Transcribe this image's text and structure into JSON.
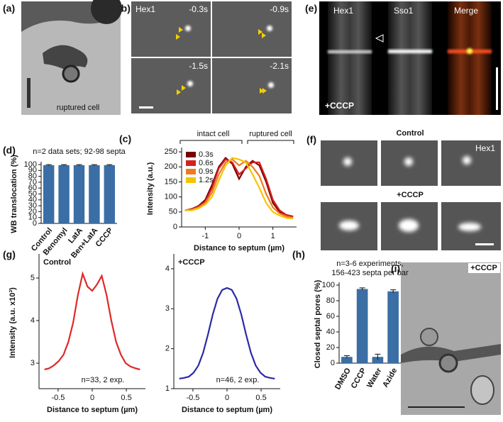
{
  "panel_labels": [
    "(a)",
    "(b)",
    "(c)",
    "(d)",
    "(e)",
    "(f)",
    "(g)",
    "(h)",
    "(i)"
  ],
  "images": {
    "a": {
      "caption": "ruptured cell"
    },
    "b": {
      "channel": "Hex1",
      "times": [
        "-0.3s",
        "-0.9s",
        "-1.5s",
        "-2.1s"
      ]
    },
    "e": {
      "channels": [
        "Hex1",
        "Sso1",
        "Merge"
      ],
      "treatment": "+CCCP"
    },
    "f": {
      "rows": [
        "Control",
        "+CCCP"
      ],
      "channel": "Hex1"
    },
    "i": {
      "treatment": "+CCCP"
    }
  },
  "chart_data": [
    {
      "type": "bar",
      "title": "n=2 data sets; 92-98 septa",
      "y_label": "WB translocation (%)",
      "categories": [
        "Control",
        "Benomyl",
        "LatA",
        "Ben+LatA",
        "CCCP"
      ],
      "values": [
        99,
        99,
        99,
        99,
        99
      ],
      "errors": [
        0.8,
        0.8,
        0.8,
        0.8,
        0.8
      ],
      "color": "#3a6ea5",
      "ylim": [
        0,
        100
      ],
      "yticks": [
        0,
        10,
        20,
        30,
        40,
        50,
        60,
        70,
        80,
        90,
        100
      ]
    },
    {
      "type": "line",
      "y_label": "Intensity (a.u.)",
      "x_label": "Distance to septum (µm)",
      "annotations": [
        "intact cell",
        "ruptured cell"
      ],
      "x": [
        -1.6,
        -1.4,
        -1.2,
        -1.0,
        -0.8,
        -0.6,
        -0.4,
        -0.2,
        0,
        0.2,
        0.4,
        0.6,
        0.8,
        1.0,
        1.2,
        1.4,
        1.6
      ],
      "series": [
        {
          "name": "0.3s",
          "color": "#7a0000",
          "values": [
            55,
            60,
            70,
            90,
            140,
            200,
            230,
            210,
            160,
            200,
            220,
            205,
            150,
            80,
            50,
            40,
            35
          ]
        },
        {
          "name": "0.6s",
          "color": "#d42020",
          "values": [
            55,
            58,
            68,
            85,
            130,
            195,
            225,
            215,
            175,
            195,
            215,
            215,
            160,
            90,
            55,
            40,
            35
          ]
        },
        {
          "name": "0.9s",
          "color": "#f07a20",
          "values": [
            55,
            58,
            65,
            80,
            115,
            175,
            215,
            225,
            205,
            220,
            200,
            170,
            110,
            65,
            45,
            35,
            30
          ]
        },
        {
          "name": "1.2s",
          "color": "#f5c400",
          "values": [
            55,
            55,
            62,
            75,
            100,
            155,
            205,
            230,
            225,
            215,
            175,
            130,
            80,
            50,
            38,
            30,
            28
          ]
        }
      ],
      "xlim": [
        -1.7,
        1.7
      ],
      "xticks": [
        -1,
        0,
        1
      ],
      "ylim": [
        0,
        255
      ],
      "yticks": [
        0,
        50,
        100,
        150,
        200,
        250
      ],
      "legend": "top-left"
    },
    {
      "type": "line",
      "title": "Control",
      "note": "n=33, 2 exp.",
      "y_label": "Intensity (a.u. x10³)",
      "x_label": "Distance to septum (µm)",
      "x": [
        -0.7,
        -0.63,
        -0.56,
        -0.49,
        -0.42,
        -0.35,
        -0.28,
        -0.21,
        -0.14,
        -0.07,
        0,
        0.07,
        0.14,
        0.21,
        0.28,
        0.35,
        0.42,
        0.49,
        0.56,
        0.63,
        0.7
      ],
      "series": [
        {
          "color": "#e02828",
          "values": [
            2.85,
            2.88,
            2.95,
            3.05,
            3.2,
            3.5,
            3.95,
            4.6,
            5.1,
            4.8,
            4.7,
            4.85,
            5.05,
            4.6,
            4.0,
            3.5,
            3.2,
            3.0,
            2.92,
            2.88,
            2.85
          ]
        }
      ],
      "xlim": [
        -0.78,
        0.78
      ],
      "xticks": [
        -0.5,
        0,
        0.5
      ],
      "ylim": [
        2.4,
        5.5
      ],
      "yticks": [
        3,
        4,
        5
      ]
    },
    {
      "type": "line",
      "title": "+CCCP",
      "note": "n=46, 2 exp.",
      "x_label": "Distance to septum (µm)",
      "x": [
        -0.7,
        -0.63,
        -0.56,
        -0.49,
        -0.42,
        -0.35,
        -0.28,
        -0.21,
        -0.14,
        -0.07,
        0,
        0.07,
        0.14,
        0.21,
        0.28,
        0.35,
        0.42,
        0.49,
        0.56,
        0.63,
        0.7
      ],
      "series": [
        {
          "color": "#2a2aa8",
          "values": [
            1.25,
            1.27,
            1.3,
            1.4,
            1.58,
            1.9,
            2.35,
            2.85,
            3.25,
            3.47,
            3.52,
            3.47,
            3.25,
            2.85,
            2.35,
            1.9,
            1.58,
            1.4,
            1.3,
            1.27,
            1.25
          ]
        }
      ],
      "xlim": [
        -0.78,
        0.78
      ],
      "xticks": [
        -0.5,
        0,
        0.5
      ],
      "ylim": [
        1,
        4.3
      ],
      "yticks": [
        1,
        2,
        3,
        4
      ]
    },
    {
      "type": "bar",
      "title": "n=3-6 experiments,",
      "subtitle": "156-423 septa per bar",
      "y_label": "Closed septal pores (%)",
      "categories": [
        "DMSO",
        "CCCP",
        "Water",
        "Azide"
      ],
      "values": [
        8,
        95,
        8,
        92
      ],
      "errors": [
        1.5,
        1.5,
        3.5,
        2
      ],
      "color": "#3a6ea5",
      "ylim": [
        0,
        100
      ],
      "yticks": [
        0,
        20,
        40,
        60,
        80,
        100
      ]
    }
  ]
}
